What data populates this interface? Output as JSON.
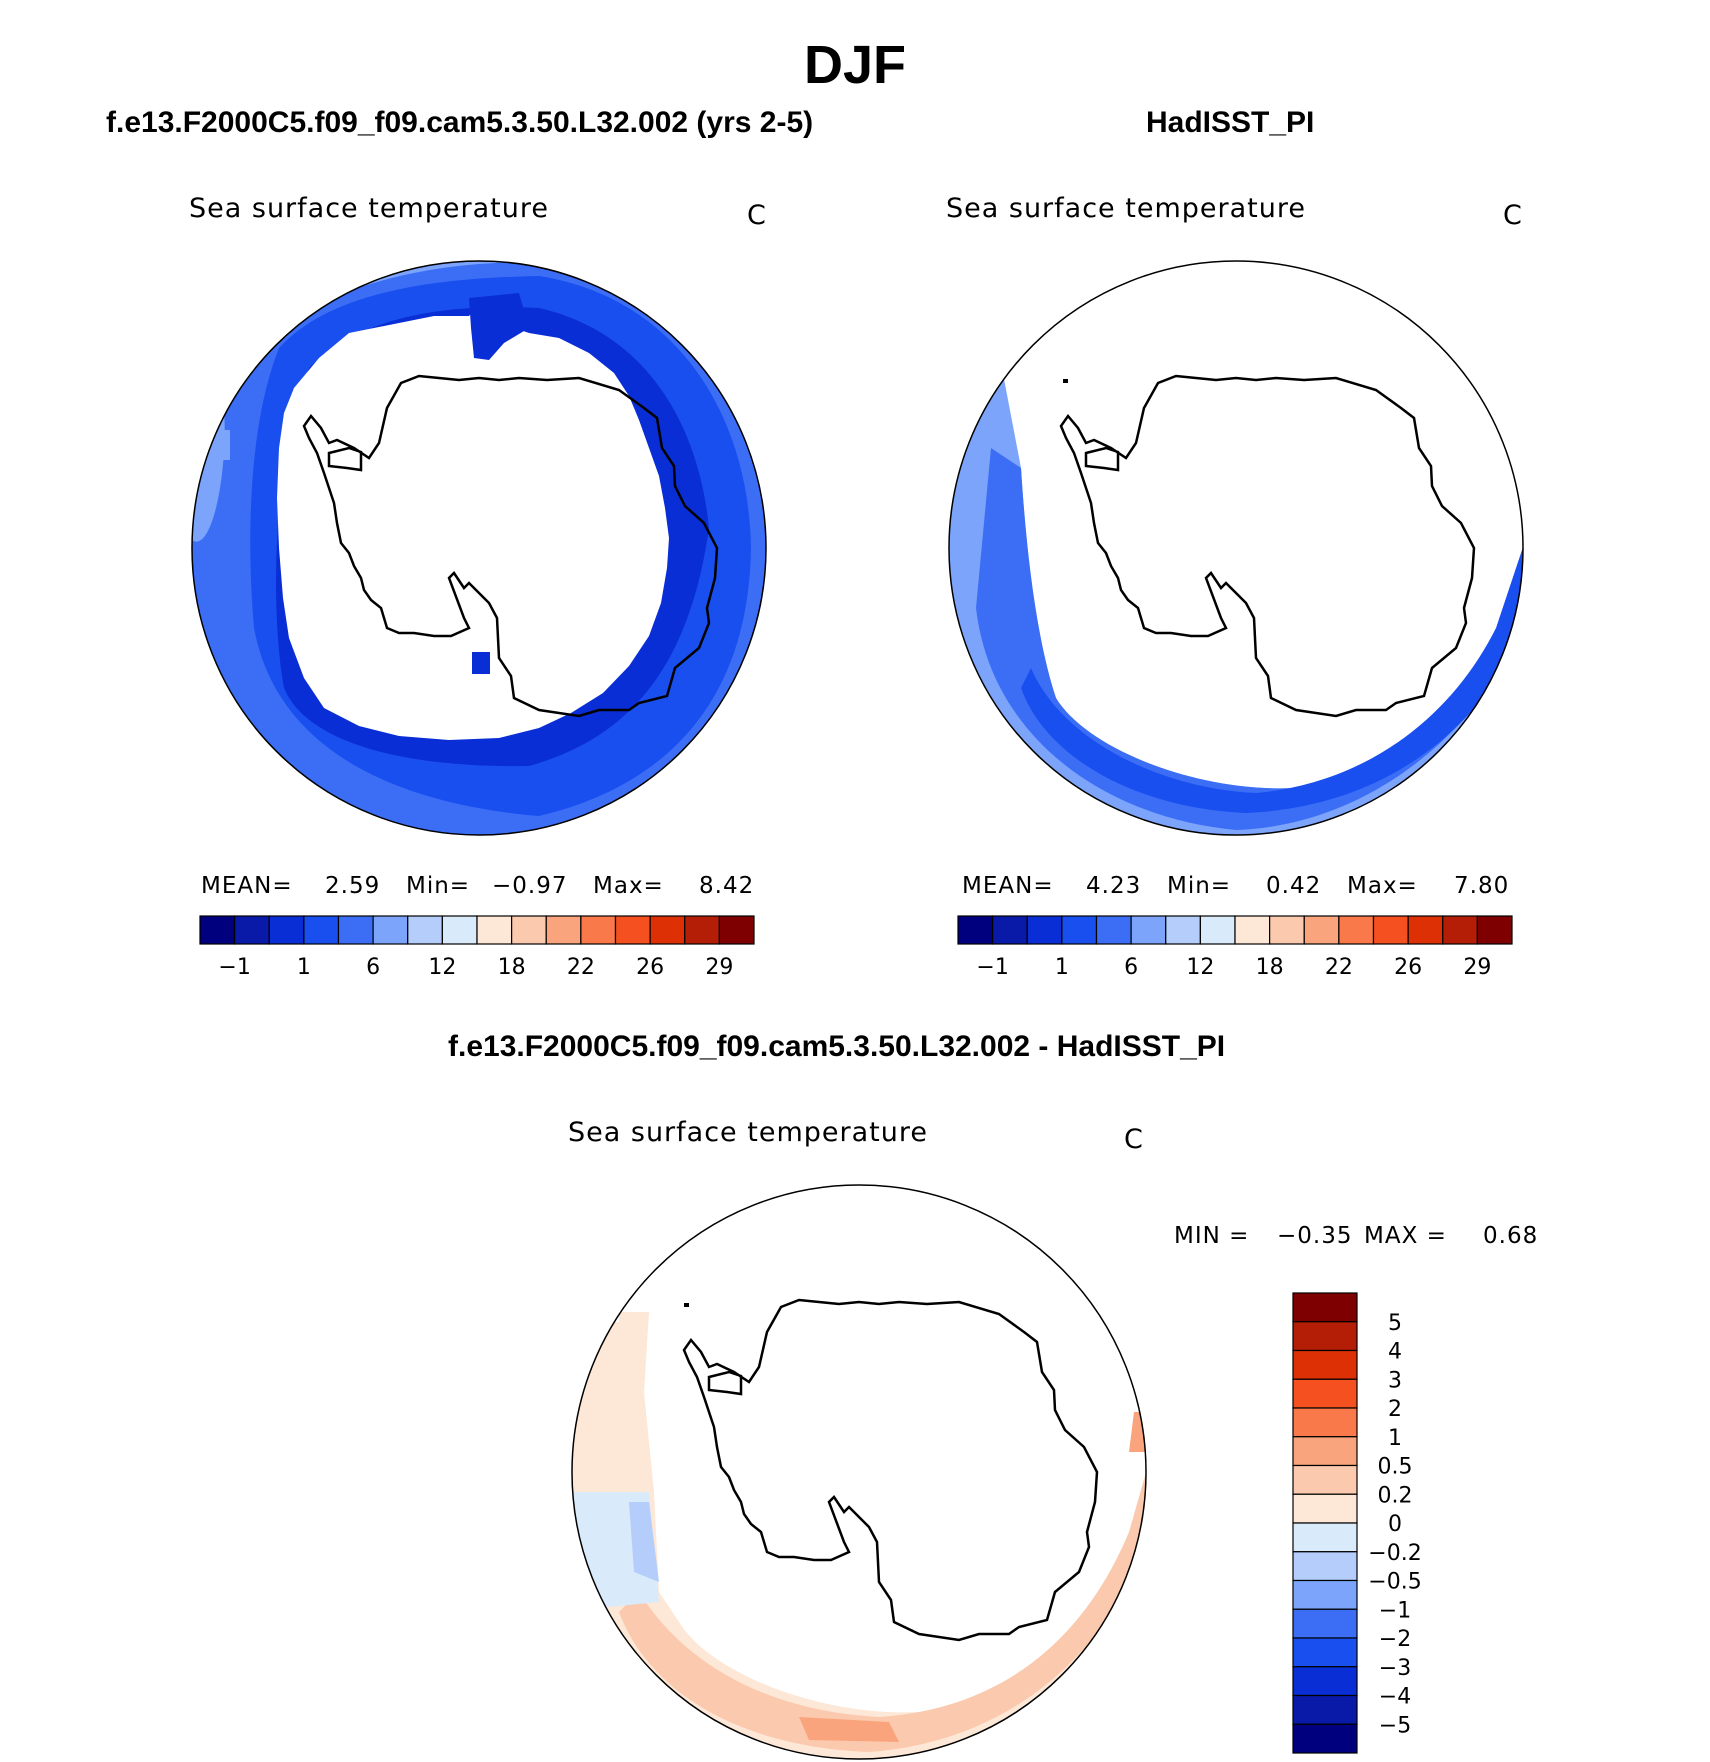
{
  "figure": {
    "title": "DJF"
  },
  "panels": [
    {
      "id": "model",
      "title": "f.e13.F2000C5.f09_f09.cam5.3.50.L32.002 (yrs 2-5)",
      "variable": "Sea surface temperature",
      "units": "C",
      "stats": {
        "mean_label": "MEAN=",
        "mean": "2.59",
        "min_label": "Min=",
        "min": "−0.97",
        "max_label": "Max=",
        "max": "8.42"
      }
    },
    {
      "id": "obs",
      "title": "HadISST_PI",
      "variable": "Sea surface temperature",
      "units": "C",
      "stats": {
        "mean_label": "MEAN=",
        "mean": "4.23",
        "min_label": "Min=",
        "min": "0.42",
        "max_label": "Max=",
        "max": "7.80"
      }
    },
    {
      "id": "diff",
      "title": "f.e13.F2000C5.f09_f09.cam5.3.50.L32.002 - HadISST_PI",
      "variable": "Sea surface temperature",
      "units": "C",
      "stats": {
        "min_label": "MIN =",
        "min": "−0.35",
        "max_label": "MAX =",
        "max": "0.68"
      }
    }
  ],
  "colorbars": {
    "absolute": {
      "colors": [
        "#00007f",
        "#0a1aa8",
        "#0a2ed6",
        "#1a4fef",
        "#3c6ef5",
        "#7ba4fa",
        "#b4cdfb",
        "#d9eafb",
        "#fde7d6",
        "#fbc9ad",
        "#f9a47d",
        "#f9794b",
        "#f55020",
        "#dd3005",
        "#b51e06",
        "#7f0000"
      ],
      "tick_labels": [
        "−1",
        "1",
        "6",
        "12",
        "18",
        "22",
        "26",
        "29"
      ]
    },
    "difference": {
      "colors": [
        "#7f0000",
        "#b51e06",
        "#dd3005",
        "#f55020",
        "#f9794b",
        "#f9a47d",
        "#fbc9ad",
        "#fde7d6",
        "#d9eafb",
        "#b4cdfb",
        "#7ba4fa",
        "#3c6ef5",
        "#1a4fef",
        "#0a2ed6",
        "#0a1aa8",
        "#00007f"
      ],
      "tick_labels": [
        "5",
        "4",
        "3",
        "2",
        "1",
        "0.5",
        "0.2",
        "0",
        "−0.2",
        "−0.5",
        "−1",
        "−2",
        "−3",
        "−4",
        "−5"
      ]
    }
  },
  "map_colors": {
    "coast": "#000000",
    "model_ring": [
      "#7ba4fa",
      "#3c6ef5",
      "#1a4fef",
      "#0a2ed6"
    ],
    "obs_ring": [
      "#7ba4fa",
      "#3c6ef5",
      "#1a4fef",
      "#0a2ed6"
    ],
    "diff_warm": [
      "#fde7d6",
      "#fbc9ad",
      "#f9a47d"
    ],
    "diff_cool": [
      "#d9eafb",
      "#b4cdfb"
    ]
  }
}
